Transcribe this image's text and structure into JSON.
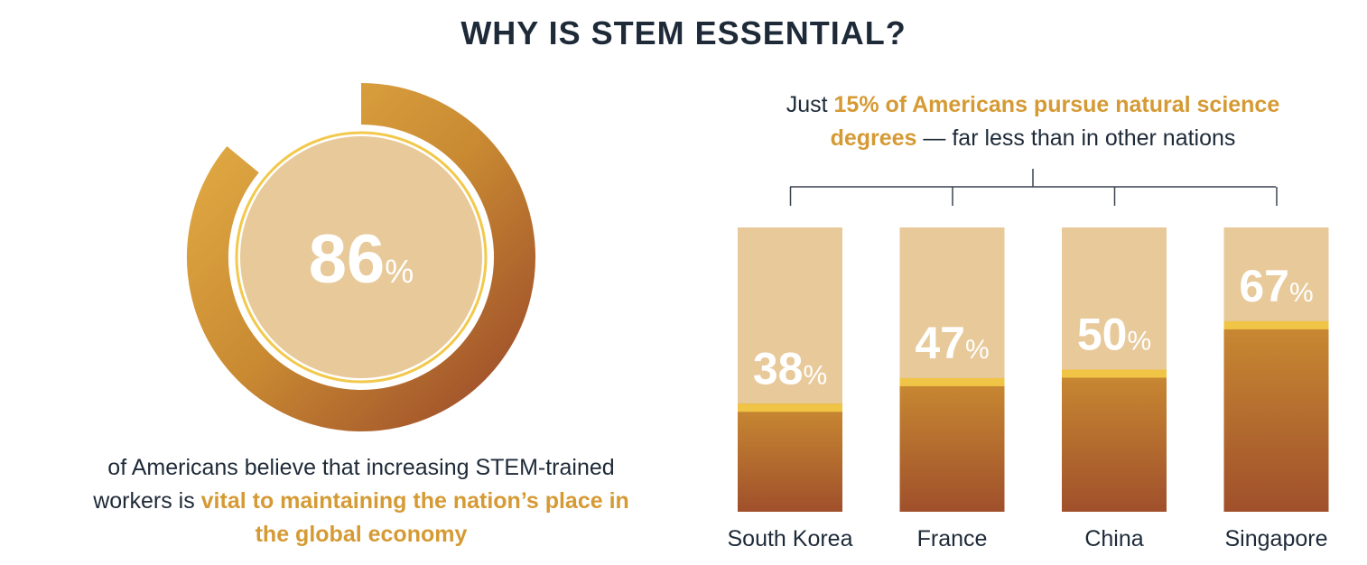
{
  "title": "WHY IS STEM ESSENTIAL?",
  "chart_data": [
    {
      "type": "donut",
      "values": [
        86
      ],
      "value_labels": [
        "86%"
      ],
      "ylim": [
        0,
        100
      ],
      "caption": [
        "of Americans believe that increasing STEM-trained workers is ",
        "vital to maintaining the nation’s place in the global economy"
      ]
    },
    {
      "type": "bar",
      "subtitle": [
        "Just ",
        "15% of Americans pursue natural science degrees",
        " — far less than in other nations"
      ],
      "categories": [
        "South Korea",
        "France",
        "China",
        "Singapore"
      ],
      "values": [
        38,
        47,
        50,
        67
      ],
      "value_labels": [
        "38%",
        "47%",
        "50%",
        "67%"
      ],
      "ylim": [
        0,
        100
      ]
    }
  ]
}
